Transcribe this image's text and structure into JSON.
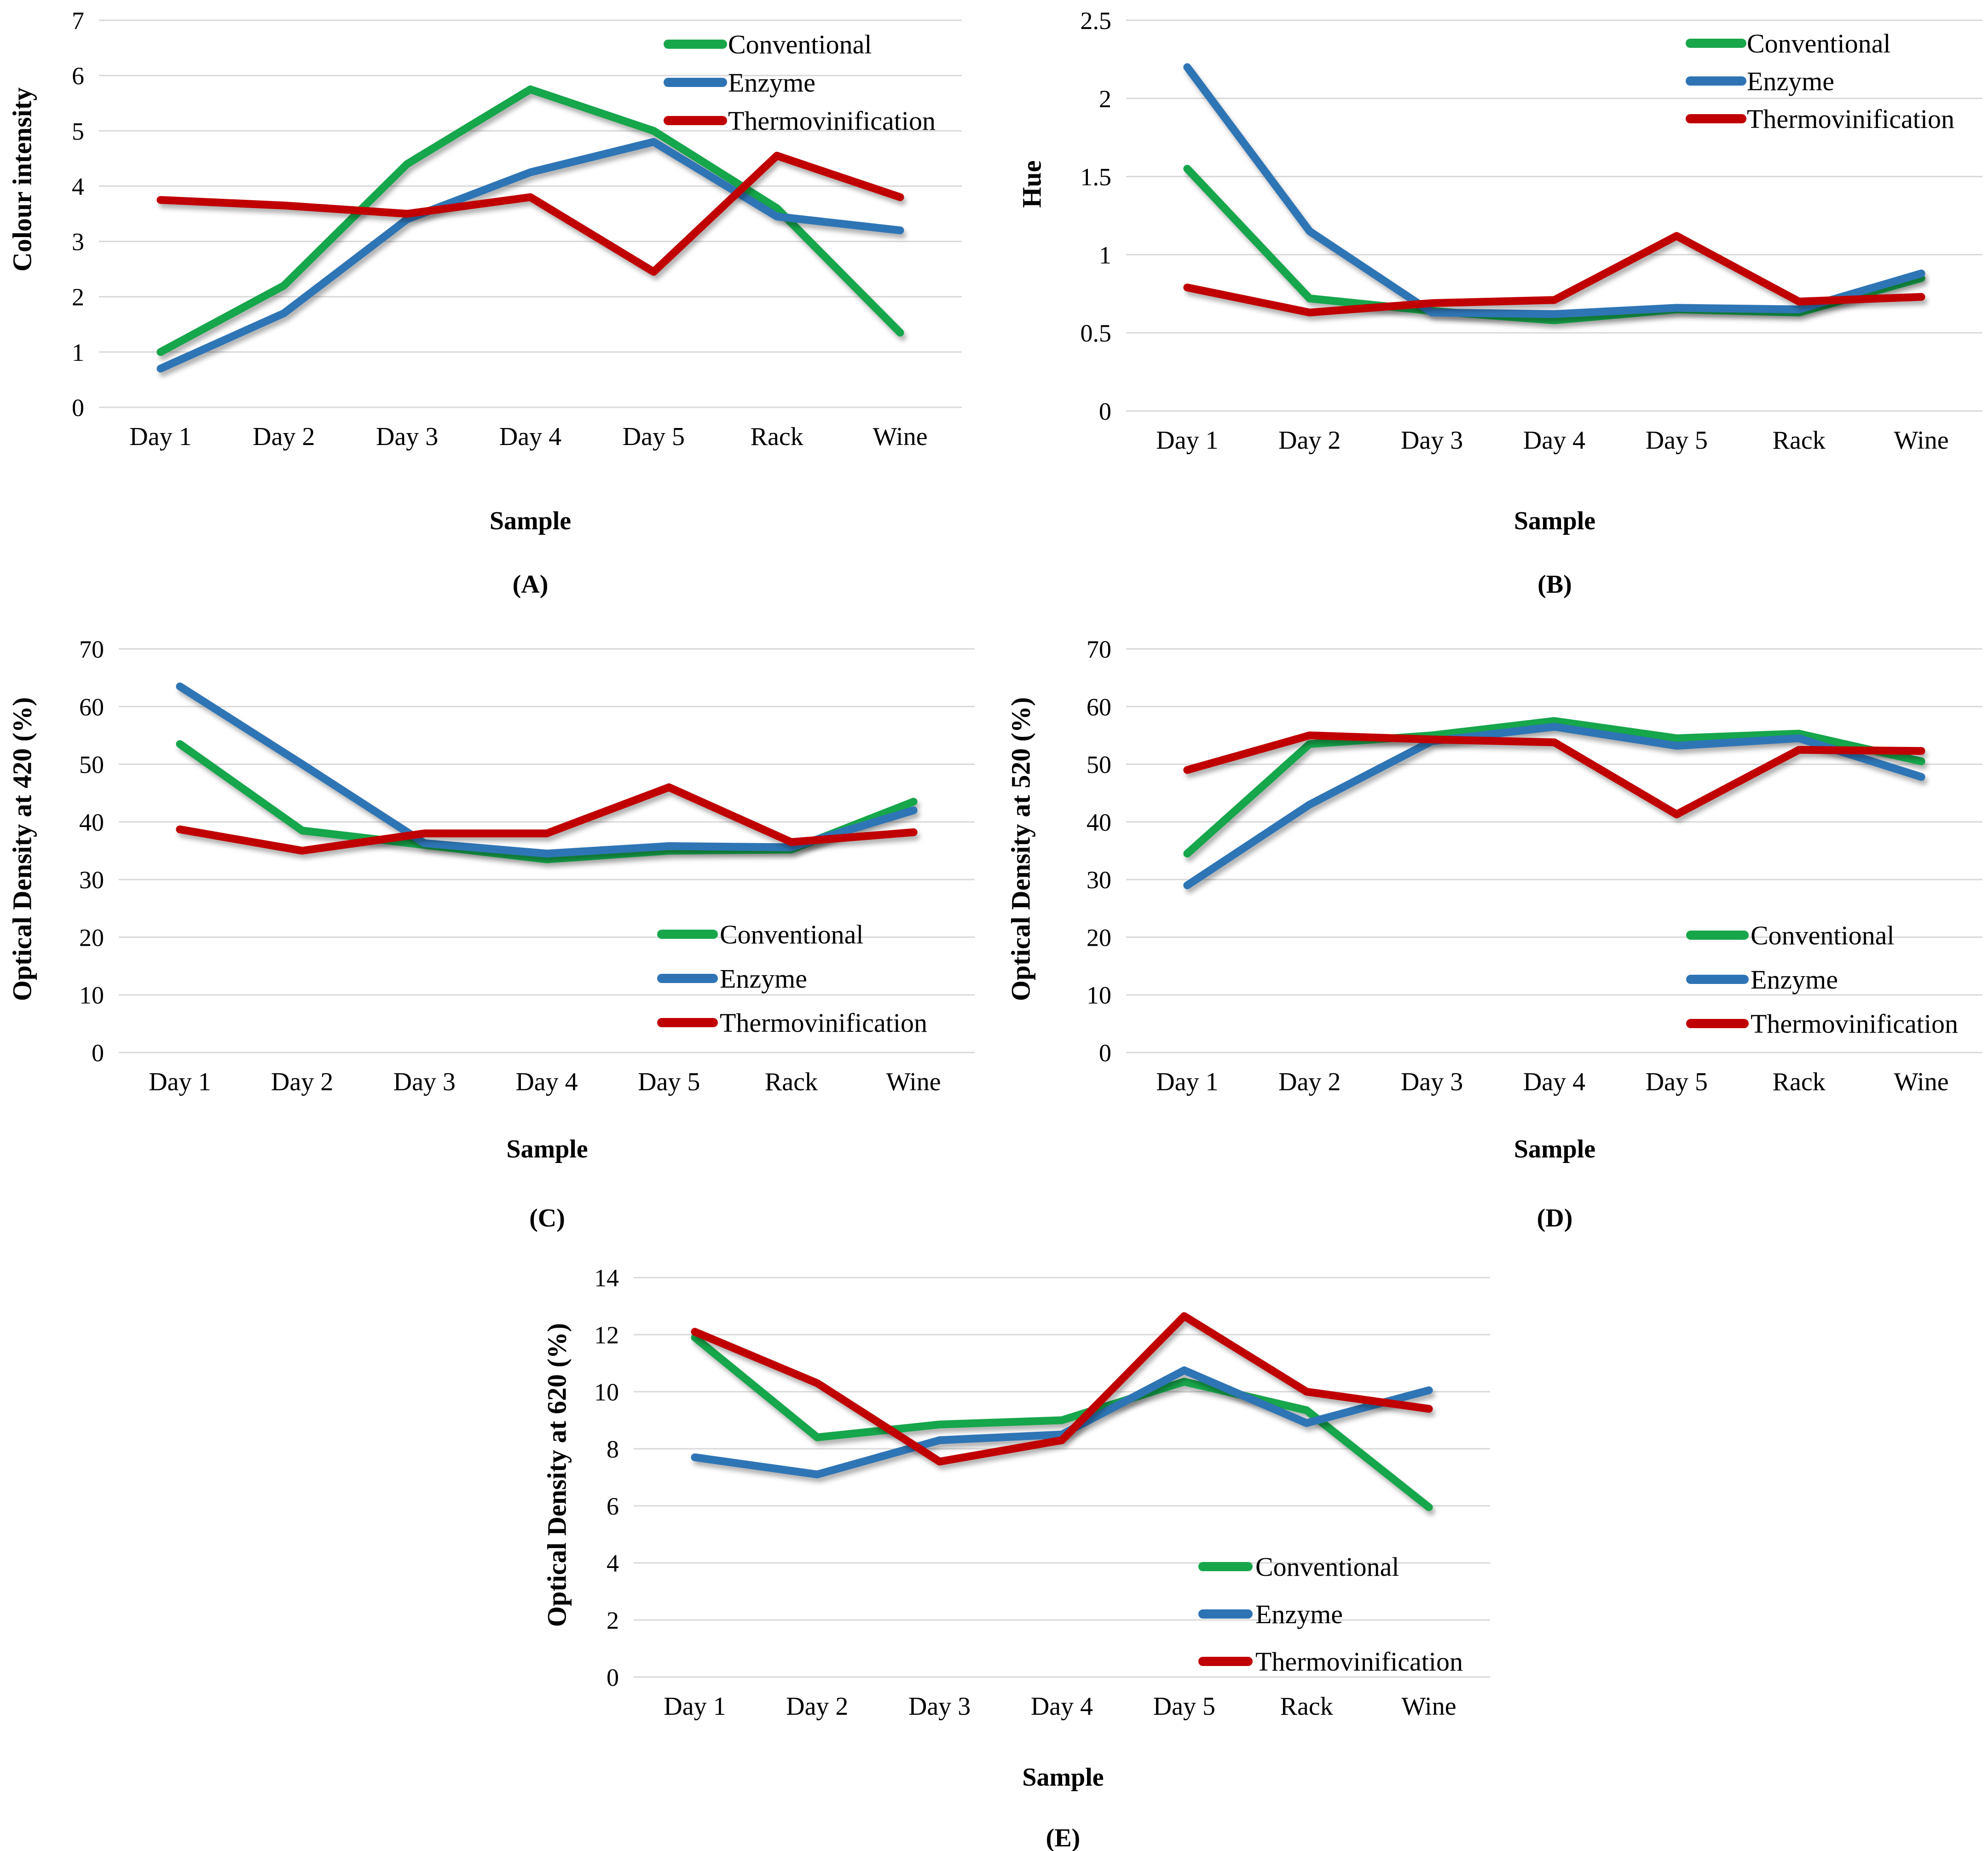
{
  "figure": {
    "background": "#ffffff",
    "text_color": "#000000",
    "gridline_color": "#D8D8D8"
  },
  "series_colors": {
    "Conventional": "#18A64B",
    "Enzyme": "#2E74B5",
    "Thermovinification": "#C00000"
  },
  "legend_entries": [
    "Conventional",
    "Enzyme",
    "Thermovinification"
  ],
  "chart_data": [
    {
      "id": "A",
      "type": "line",
      "caption": "(A)",
      "title": "",
      "ylabel": "Colour intensity",
      "xlabel": "Sample",
      "grid": true,
      "legend_pos": "top-right",
      "ylim": [
        0,
        7
      ],
      "yticks": [
        0,
        1,
        2,
        3,
        4,
        5,
        6,
        7
      ],
      "categories": [
        "Day 1",
        "Day 2",
        "Day 3",
        "Day 4",
        "Day 5",
        "Rack",
        "Wine"
      ],
      "series": [
        {
          "name": "Conventional",
          "values": [
            1.0,
            2.2,
            4.4,
            5.75,
            5.0,
            3.6,
            1.35
          ]
        },
        {
          "name": "Enzyme",
          "values": [
            0.7,
            1.7,
            3.4,
            4.25,
            4.8,
            3.45,
            3.2
          ]
        },
        {
          "name": "Thermovinification",
          "values": [
            3.75,
            3.65,
            3.5,
            3.8,
            2.45,
            4.55,
            3.8
          ]
        }
      ]
    },
    {
      "id": "B",
      "type": "line",
      "caption": "(B)",
      "title": "",
      "ylabel": "Hue",
      "xlabel": "Sample",
      "grid": true,
      "legend_pos": "top-right",
      "ylim": [
        0,
        2.5
      ],
      "yticks": [
        0,
        0.5,
        1,
        1.5,
        2,
        2.5
      ],
      "categories": [
        "Day 1",
        "Day 2",
        "Day 3",
        "Day 4",
        "Day 5",
        "Rack",
        "Wine"
      ],
      "series": [
        {
          "name": "Conventional",
          "values": [
            1.55,
            0.72,
            0.64,
            0.58,
            0.65,
            0.63,
            0.85
          ]
        },
        {
          "name": "Enzyme",
          "values": [
            2.2,
            1.15,
            0.63,
            0.62,
            0.66,
            0.65,
            0.88
          ]
        },
        {
          "name": "Thermovinification",
          "values": [
            0.79,
            0.63,
            0.69,
            0.71,
            1.12,
            0.7,
            0.73
          ]
        }
      ]
    },
    {
      "id": "C",
      "type": "line",
      "caption": "(C)",
      "title": "",
      "ylabel": "Optical Density at 420 (%)",
      "xlabel": "Sample",
      "grid": true,
      "legend_pos": "right-lower",
      "ylim": [
        0,
        70
      ],
      "yticks": [
        0,
        10,
        20,
        30,
        40,
        50,
        60,
        70
      ],
      "categories": [
        "Day 1",
        "Day 2",
        "Day 3",
        "Day 4",
        "Day 5",
        "Rack",
        "Wine"
      ],
      "series": [
        {
          "name": "Conventional",
          "values": [
            53.5,
            38.5,
            36.0,
            33.5,
            35.0,
            35.2,
            43.5
          ]
        },
        {
          "name": "Enzyme",
          "values": [
            63.5,
            50.0,
            36.3,
            34.5,
            35.8,
            35.6,
            42.0
          ]
        },
        {
          "name": "Thermovinification",
          "values": [
            38.7,
            35.0,
            38.0,
            38.0,
            46.0,
            36.5,
            38.2
          ]
        }
      ]
    },
    {
      "id": "D",
      "type": "line",
      "caption": "(D)",
      "title": "",
      "ylabel": "Optical Density at 520 (%)",
      "xlabel": "Sample",
      "grid": true,
      "legend_pos": "right-lower",
      "ylim": [
        0,
        70
      ],
      "yticks": [
        0,
        10,
        20,
        30,
        40,
        50,
        60,
        70
      ],
      "categories": [
        "Day 1",
        "Day 2",
        "Day 3",
        "Day 4",
        "Day 5",
        "Rack",
        "Wine"
      ],
      "series": [
        {
          "name": "Conventional",
          "values": [
            34.5,
            53.5,
            55.0,
            57.5,
            54.5,
            55.3,
            50.5
          ]
        },
        {
          "name": "Enzyme",
          "values": [
            29.0,
            43.0,
            54.0,
            56.5,
            53.2,
            54.5,
            47.8
          ]
        },
        {
          "name": "Thermovinification",
          "values": [
            49.0,
            55.0,
            54.3,
            53.8,
            41.3,
            52.5,
            52.3
          ]
        }
      ]
    },
    {
      "id": "E",
      "type": "line",
      "caption": "(E)",
      "title": "",
      "ylabel": "Optical Density at 620 (%)",
      "xlabel": "Sample",
      "grid": true,
      "legend_pos": "right-lower",
      "ylim": [
        0,
        14
      ],
      "yticks": [
        0,
        2,
        4,
        6,
        8,
        10,
        12,
        14
      ],
      "categories": [
        "Day 1",
        "Day 2",
        "Day 3",
        "Day 4",
        "Day 5",
        "Rack",
        "Wine"
      ],
      "series": [
        {
          "name": "Conventional",
          "values": [
            11.9,
            8.4,
            8.85,
            9.0,
            10.35,
            9.35,
            5.95
          ]
        },
        {
          "name": "Enzyme",
          "values": [
            7.7,
            7.1,
            8.3,
            8.5,
            10.75,
            8.9,
            10.05
          ]
        },
        {
          "name": "Thermovinification",
          "values": [
            12.1,
            10.3,
            7.55,
            8.3,
            12.65,
            10.0,
            9.4
          ]
        }
      ]
    }
  ]
}
